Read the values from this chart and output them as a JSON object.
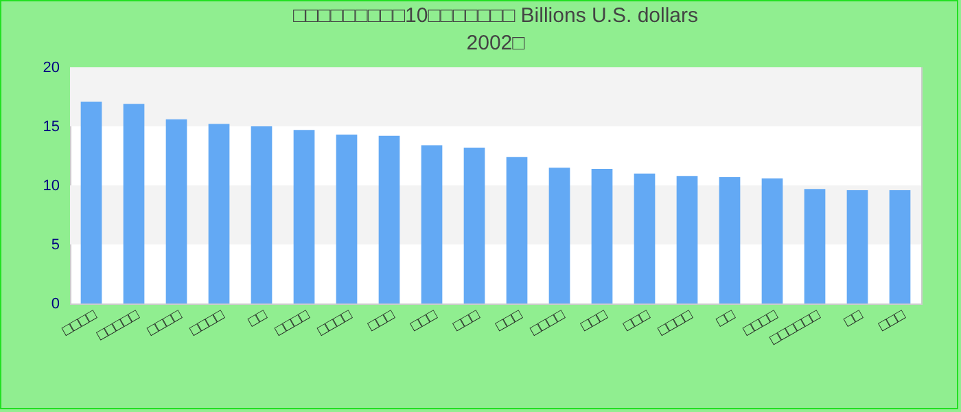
{
  "chart_data": {
    "type": "bar",
    "title": "□□□□□□□□□10□□□□□□□ Billions U.S. dollars\n2002□",
    "categories": [
      "□□□□",
      "□□□□□",
      "□□□□",
      "□□□□",
      "□□",
      "□□□□",
      "□□□□",
      "□□□",
      "□□□",
      "□□□",
      "□□□",
      "□□□□",
      "□□□",
      "□□□",
      "□□□□",
      "□□",
      "□□□□",
      "□□□□□□",
      "□□",
      "□□□"
    ],
    "values": [
      17.1,
      16.9,
      15.6,
      15.2,
      15.0,
      14.7,
      14.3,
      14.2,
      13.4,
      13.2,
      12.4,
      11.5,
      11.4,
      11.0,
      10.8,
      10.7,
      10.6,
      9.7,
      9.6,
      9.6
    ],
    "color": "#63a9f4",
    "ylim": [
      0,
      20
    ],
    "yticks": [
      0,
      5,
      10,
      15,
      20
    ],
    "bands": [
      {
        "axis": "y",
        "from": 5,
        "to": 10,
        "color": "#f3f3f3"
      },
      {
        "axis": "y",
        "from": 15,
        "to": 20,
        "color": "#f3f3f3"
      }
    ]
  }
}
